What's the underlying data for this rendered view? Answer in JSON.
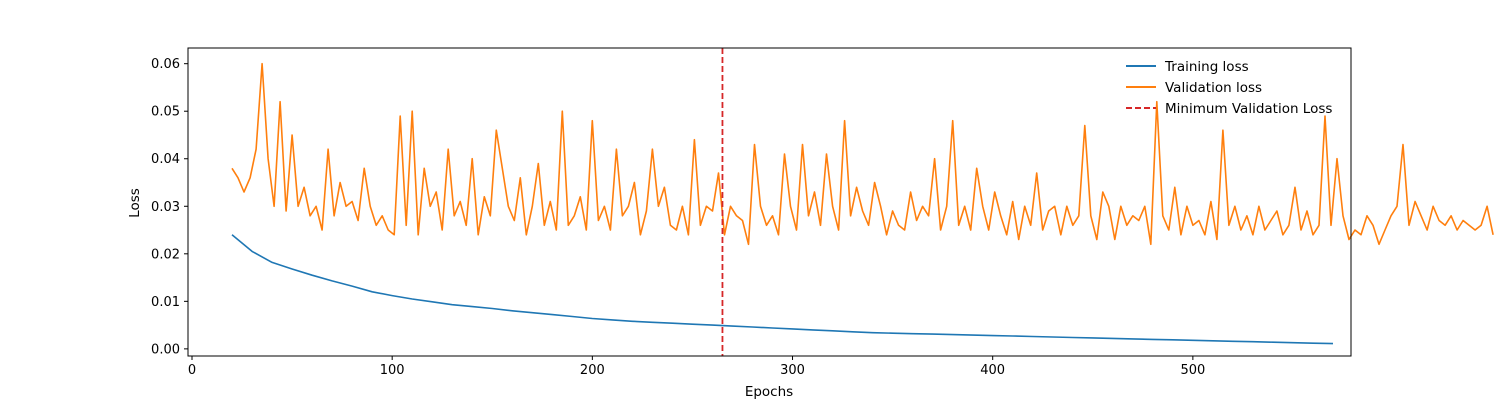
{
  "chart_data": {
    "type": "line",
    "title": "",
    "xlabel": "Epochs",
    "ylabel": "Loss",
    "xlim": [
      -2,
      579
    ],
    "ylim": [
      -0.0015,
      0.0633
    ],
    "xticks": [
      0,
      100,
      200,
      300,
      400,
      500
    ],
    "yticks": [
      0.0,
      0.01,
      0.02,
      0.03,
      0.04,
      0.05,
      0.06
    ],
    "ytick_labels": [
      "0.00",
      "0.01",
      "0.02",
      "0.03",
      "0.04",
      "0.05",
      "0.06"
    ],
    "grid": false,
    "legend_position": "top-right",
    "vline": {
      "name": "Minimum Validation Loss",
      "x": 265,
      "color": "#d62728",
      "style": "dashed"
    },
    "series": [
      {
        "name": "Training loss",
        "color": "#1f77b4",
        "x_start": 20,
        "x_step": 10,
        "values": [
          0.024,
          0.0205,
          0.0182,
          0.0168,
          0.0155,
          0.0143,
          0.0132,
          0.012,
          0.0112,
          0.0105,
          0.0099,
          0.0093,
          0.0089,
          0.0085,
          0.008,
          0.0076,
          0.0072,
          0.0068,
          0.0064,
          0.0061,
          0.0058,
          0.0056,
          0.0054,
          0.0052,
          0.005,
          0.0048,
          0.0046,
          0.0044,
          0.0042,
          0.004,
          0.0038,
          0.0036,
          0.0034,
          0.0033,
          0.0032,
          0.0031,
          0.003,
          0.0029,
          0.0028,
          0.0027,
          0.0026,
          0.0025,
          0.0024,
          0.0023,
          0.0022,
          0.0021,
          0.002,
          0.0019,
          0.0018,
          0.0017,
          0.0016,
          0.0015,
          0.0014,
          0.0013,
          0.0012,
          0.0011
        ]
      },
      {
        "name": "Validation loss",
        "color": "#ff7f0e",
        "x_start": 20,
        "x_step": 3,
        "values": [
          0.038,
          0.036,
          0.033,
          0.036,
          0.042,
          0.06,
          0.04,
          0.03,
          0.052,
          0.029,
          0.045,
          0.03,
          0.034,
          0.028,
          0.03,
          0.025,
          0.042,
          0.028,
          0.035,
          0.03,
          0.031,
          0.027,
          0.038,
          0.03,
          0.026,
          0.028,
          0.025,
          0.024,
          0.049,
          0.026,
          0.05,
          0.024,
          0.038,
          0.03,
          0.033,
          0.025,
          0.042,
          0.028,
          0.031,
          0.026,
          0.04,
          0.024,
          0.032,
          0.028,
          0.046,
          0.038,
          0.03,
          0.027,
          0.036,
          0.024,
          0.03,
          0.039,
          0.026,
          0.031,
          0.025,
          0.05,
          0.026,
          0.028,
          0.032,
          0.025,
          0.048,
          0.027,
          0.03,
          0.025,
          0.042,
          0.028,
          0.03,
          0.035,
          0.024,
          0.029,
          0.042,
          0.03,
          0.034,
          0.026,
          0.025,
          0.03,
          0.024,
          0.044,
          0.026,
          0.03,
          0.029,
          0.037,
          0.024,
          0.03,
          0.028,
          0.027,
          0.022,
          0.043,
          0.03,
          0.026,
          0.028,
          0.024,
          0.041,
          0.03,
          0.025,
          0.043,
          0.028,
          0.033,
          0.026,
          0.041,
          0.03,
          0.025,
          0.048,
          0.028,
          0.034,
          0.029,
          0.026,
          0.035,
          0.03,
          0.024,
          0.029,
          0.026,
          0.025,
          0.033,
          0.027,
          0.03,
          0.028,
          0.04,
          0.025,
          0.03,
          0.048,
          0.026,
          0.03,
          0.025,
          0.038,
          0.03,
          0.025,
          0.033,
          0.028,
          0.024,
          0.031,
          0.023,
          0.03,
          0.026,
          0.037,
          0.025,
          0.029,
          0.03,
          0.024,
          0.03,
          0.026,
          0.028,
          0.047,
          0.028,
          0.023,
          0.033,
          0.03,
          0.023,
          0.03,
          0.026,
          0.028,
          0.027,
          0.03,
          0.022,
          0.052,
          0.028,
          0.025,
          0.034,
          0.024,
          0.03,
          0.026,
          0.027,
          0.024,
          0.031,
          0.023,
          0.046,
          0.026,
          0.03,
          0.025,
          0.028,
          0.024,
          0.03,
          0.025,
          0.027,
          0.029,
          0.024,
          0.026,
          0.034,
          0.025,
          0.029,
          0.024,
          0.026,
          0.049,
          0.026,
          0.04,
          0.028,
          0.023,
          0.025,
          0.024,
          0.028,
          0.026,
          0.022,
          0.025,
          0.028,
          0.03,
          0.043,
          0.026,
          0.031,
          0.028,
          0.025,
          0.03,
          0.027,
          0.026,
          0.028,
          0.025,
          0.027,
          0.026,
          0.025,
          0.026,
          0.03,
          0.024
        ]
      }
    ]
  },
  "legend": {
    "items": [
      {
        "label": "Training loss",
        "color": "#1f77b4",
        "style": "solid"
      },
      {
        "label": "Validation loss",
        "color": "#ff7f0e",
        "style": "solid"
      },
      {
        "label": "Minimum Validation Loss",
        "color": "#d62728",
        "style": "dashed"
      }
    ]
  }
}
